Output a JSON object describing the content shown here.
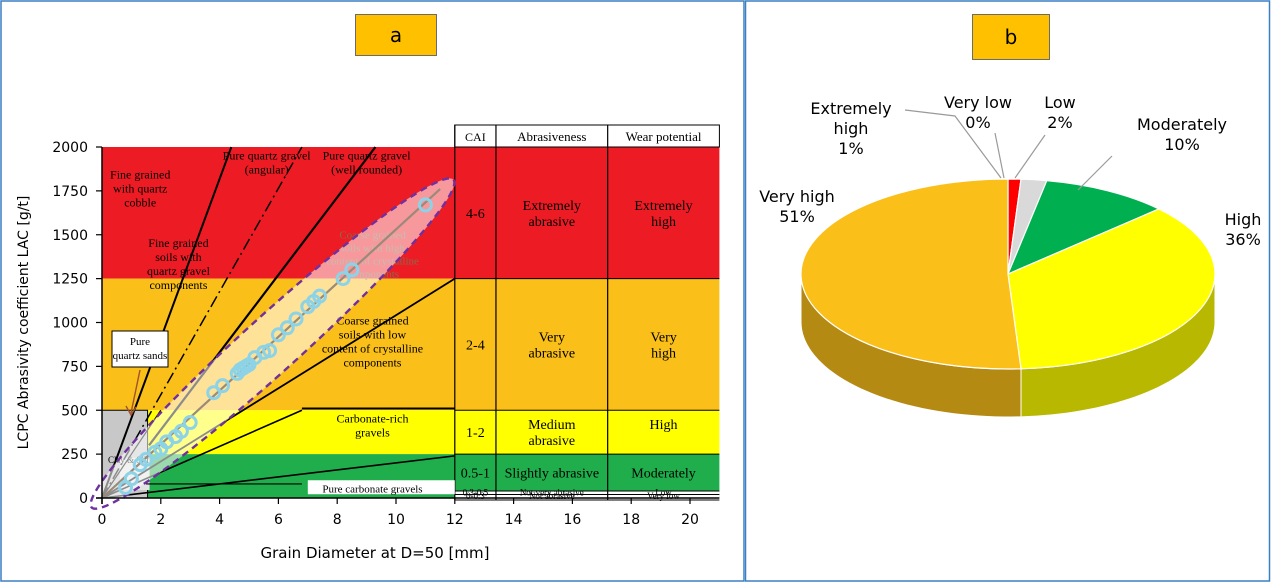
{
  "panel_a": {
    "badge": "a",
    "xlabel": "Grain Diameter at D=50 [mm]",
    "ylabel": "LCPC Abrasivity coefficient LAC [g/t]",
    "x_ticks": [
      "0",
      "2",
      "4",
      "6",
      "8",
      "10",
      "12",
      "14",
      "16",
      "18",
      "20"
    ],
    "y_ticks": [
      "0",
      "250",
      "500",
      "750",
      "1000",
      "1250",
      "1500",
      "1750",
      "2000"
    ],
    "zone_labels": {
      "fine_quartz_cobble": [
        "Fine grained",
        "with quartz",
        "cobble"
      ],
      "pure_gravel_angular": [
        "Pure quartz gravel",
        "(angular)"
      ],
      "pure_gravel_rounded": [
        "Pure quartz gravel",
        "(well rounded)"
      ],
      "fine_soils_gravel": [
        "Fine grained",
        "soils with",
        "quartz gravel",
        "components"
      ],
      "coarse_high": [
        "Coarse grained",
        "soils with high",
        "content of crystalline",
        "components"
      ],
      "coarse_low": [
        "Coarse grained",
        "soils with low",
        "content of crystalline",
        "components"
      ],
      "carbonate_rich": [
        "Carbonate-rich",
        "gravels"
      ],
      "pure_carbonate": "Pure carbonate gravels",
      "pure_quartz_sands": [
        "Pure",
        "quartz sands"
      ],
      "clay_silt": "Clay & Silt"
    },
    "table": {
      "headers": [
        "CAI",
        "Abrasiveness",
        "Wear potential"
      ],
      "rows": [
        {
          "cai": "4-6",
          "abrasiveness": [
            "Extremely",
            "abrasive"
          ],
          "wear": [
            "Extremely",
            "high"
          ],
          "color": "#ed1c24"
        },
        {
          "cai": "2-4",
          "abrasiveness": [
            "Very",
            "abrasive"
          ],
          "wear": [
            "Very",
            "high"
          ],
          "color": "#fbbf1a"
        },
        {
          "cai": "1-2",
          "abrasiveness": [
            "Medium",
            "abrasive"
          ],
          "wear": [
            "High"
          ],
          "color": "#ffff00"
        },
        {
          "cai": "0.5-1",
          "abrasiveness": [
            "Slightly abrasive"
          ],
          "wear": [
            "Moderately"
          ],
          "color": "#1fae4b"
        },
        {
          "cai": "0.3-0.5",
          "abrasiveness": [
            "Not very abrasive"
          ],
          "wear": [
            "Low"
          ],
          "color": "#ffffff"
        },
        {
          "cai": "0-0.3",
          "abrasiveness": [
            "Not abrasive"
          ],
          "wear": [
            "Very low"
          ],
          "color": "#ffffff"
        }
      ]
    }
  },
  "panel_b": {
    "badge": "b"
  },
  "chart_data": [
    {
      "type": "scatter",
      "xlabel": "Grain Diameter at D=50 [mm]",
      "ylabel": "LCPC Abrasivity coefficient LAC [g/t]",
      "xlim": [
        0,
        21
      ],
      "ylim": [
        0,
        2000
      ],
      "bands": [
        {
          "ymin": 1250,
          "ymax": 2000,
          "color": "#ed1c24"
        },
        {
          "ymin": 500,
          "ymax": 1250,
          "color": "#fbbf1a"
        },
        {
          "ymin": 250,
          "ymax": 500,
          "color": "#ffff00"
        },
        {
          "ymin": 0,
          "ymax": 250,
          "color": "#1fae4b"
        }
      ],
      "points": [
        [
          0.8,
          60
        ],
        [
          1.0,
          110
        ],
        [
          1.3,
          190
        ],
        [
          1.5,
          220
        ],
        [
          1.8,
          260
        ],
        [
          2.0,
          280
        ],
        [
          2.2,
          320
        ],
        [
          2.5,
          350
        ],
        [
          2.7,
          380
        ],
        [
          3.0,
          430
        ],
        [
          3.8,
          600
        ],
        [
          4.1,
          640
        ],
        [
          4.6,
          710
        ],
        [
          4.7,
          730
        ],
        [
          4.8,
          740
        ],
        [
          4.9,
          750
        ],
        [
          5.0,
          760
        ],
        [
          5.2,
          800
        ],
        [
          5.5,
          830
        ],
        [
          5.7,
          840
        ],
        [
          6.0,
          930
        ],
        [
          6.3,
          970
        ],
        [
          6.6,
          1020
        ],
        [
          7.0,
          1090
        ],
        [
          7.2,
          1120
        ],
        [
          7.4,
          1150
        ],
        [
          8.2,
          1250
        ],
        [
          8.5,
          1300
        ],
        [
          11.0,
          1670
        ]
      ],
      "point_color": "#8dd3e8"
    },
    {
      "type": "pie",
      "slices": [
        {
          "label": "Very low",
          "value": 0,
          "percent": "0%",
          "color": "#ed1c24"
        },
        {
          "label": "Extremely high",
          "value": 1,
          "percent": "1%",
          "color": "#ff0000"
        },
        {
          "label": "Low",
          "value": 2,
          "percent": "2%",
          "color": "#d9d9d9"
        },
        {
          "label": "Moderately",
          "value": 10,
          "percent": "10%",
          "color": "#00b050"
        },
        {
          "label": "High",
          "value": 36,
          "percent": "36%",
          "color": "#ffff00"
        },
        {
          "label": "Very high",
          "value": 51,
          "percent": "51%",
          "color": "#fbbf1a"
        }
      ]
    }
  ]
}
